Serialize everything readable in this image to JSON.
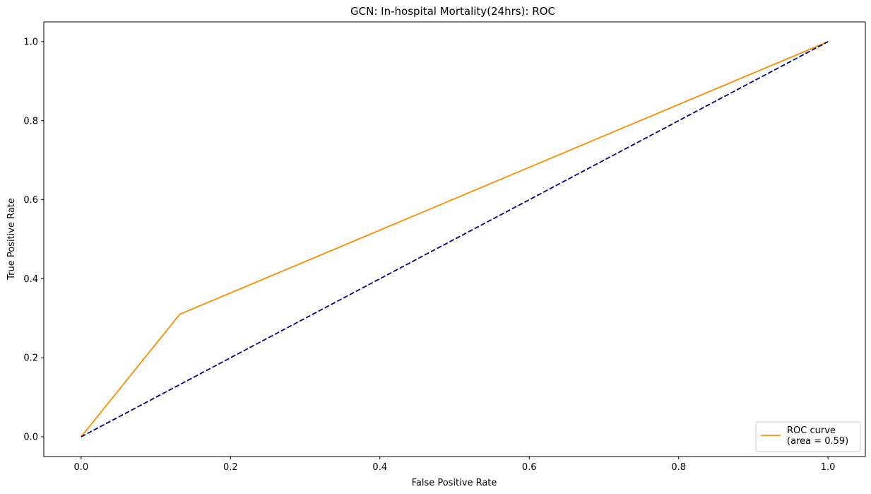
{
  "chart_data": {
    "type": "line",
    "title": "GCN: In-hospital Mortality(24hrs): ROC",
    "xlabel": "False Positive Rate",
    "ylabel": "True Positive Rate",
    "xlim": [
      -0.05,
      1.05
    ],
    "ylim": [
      -0.05,
      1.05
    ],
    "xticks": [
      "0.0",
      "0.2",
      "0.4",
      "0.6",
      "0.8",
      "1.0"
    ],
    "yticks": [
      "0.0",
      "0.2",
      "0.4",
      "0.6",
      "0.8",
      "1.0"
    ],
    "grid": false,
    "legend_position": "lower-right",
    "series": [
      {
        "name": "ROC curve\n(area = 0.59)",
        "legend_lines": [
          "ROC curve",
          "(area = 0.59)"
        ],
        "color": "#ff8c00",
        "style": "solid",
        "x": [
          0.0,
          0.132,
          1.0
        ],
        "y": [
          0.0,
          0.31,
          1.0
        ]
      },
      {
        "color": "#000080",
        "style": "dashed",
        "x": [
          0.0,
          1.0
        ],
        "y": [
          0.0,
          1.0
        ]
      }
    ]
  }
}
